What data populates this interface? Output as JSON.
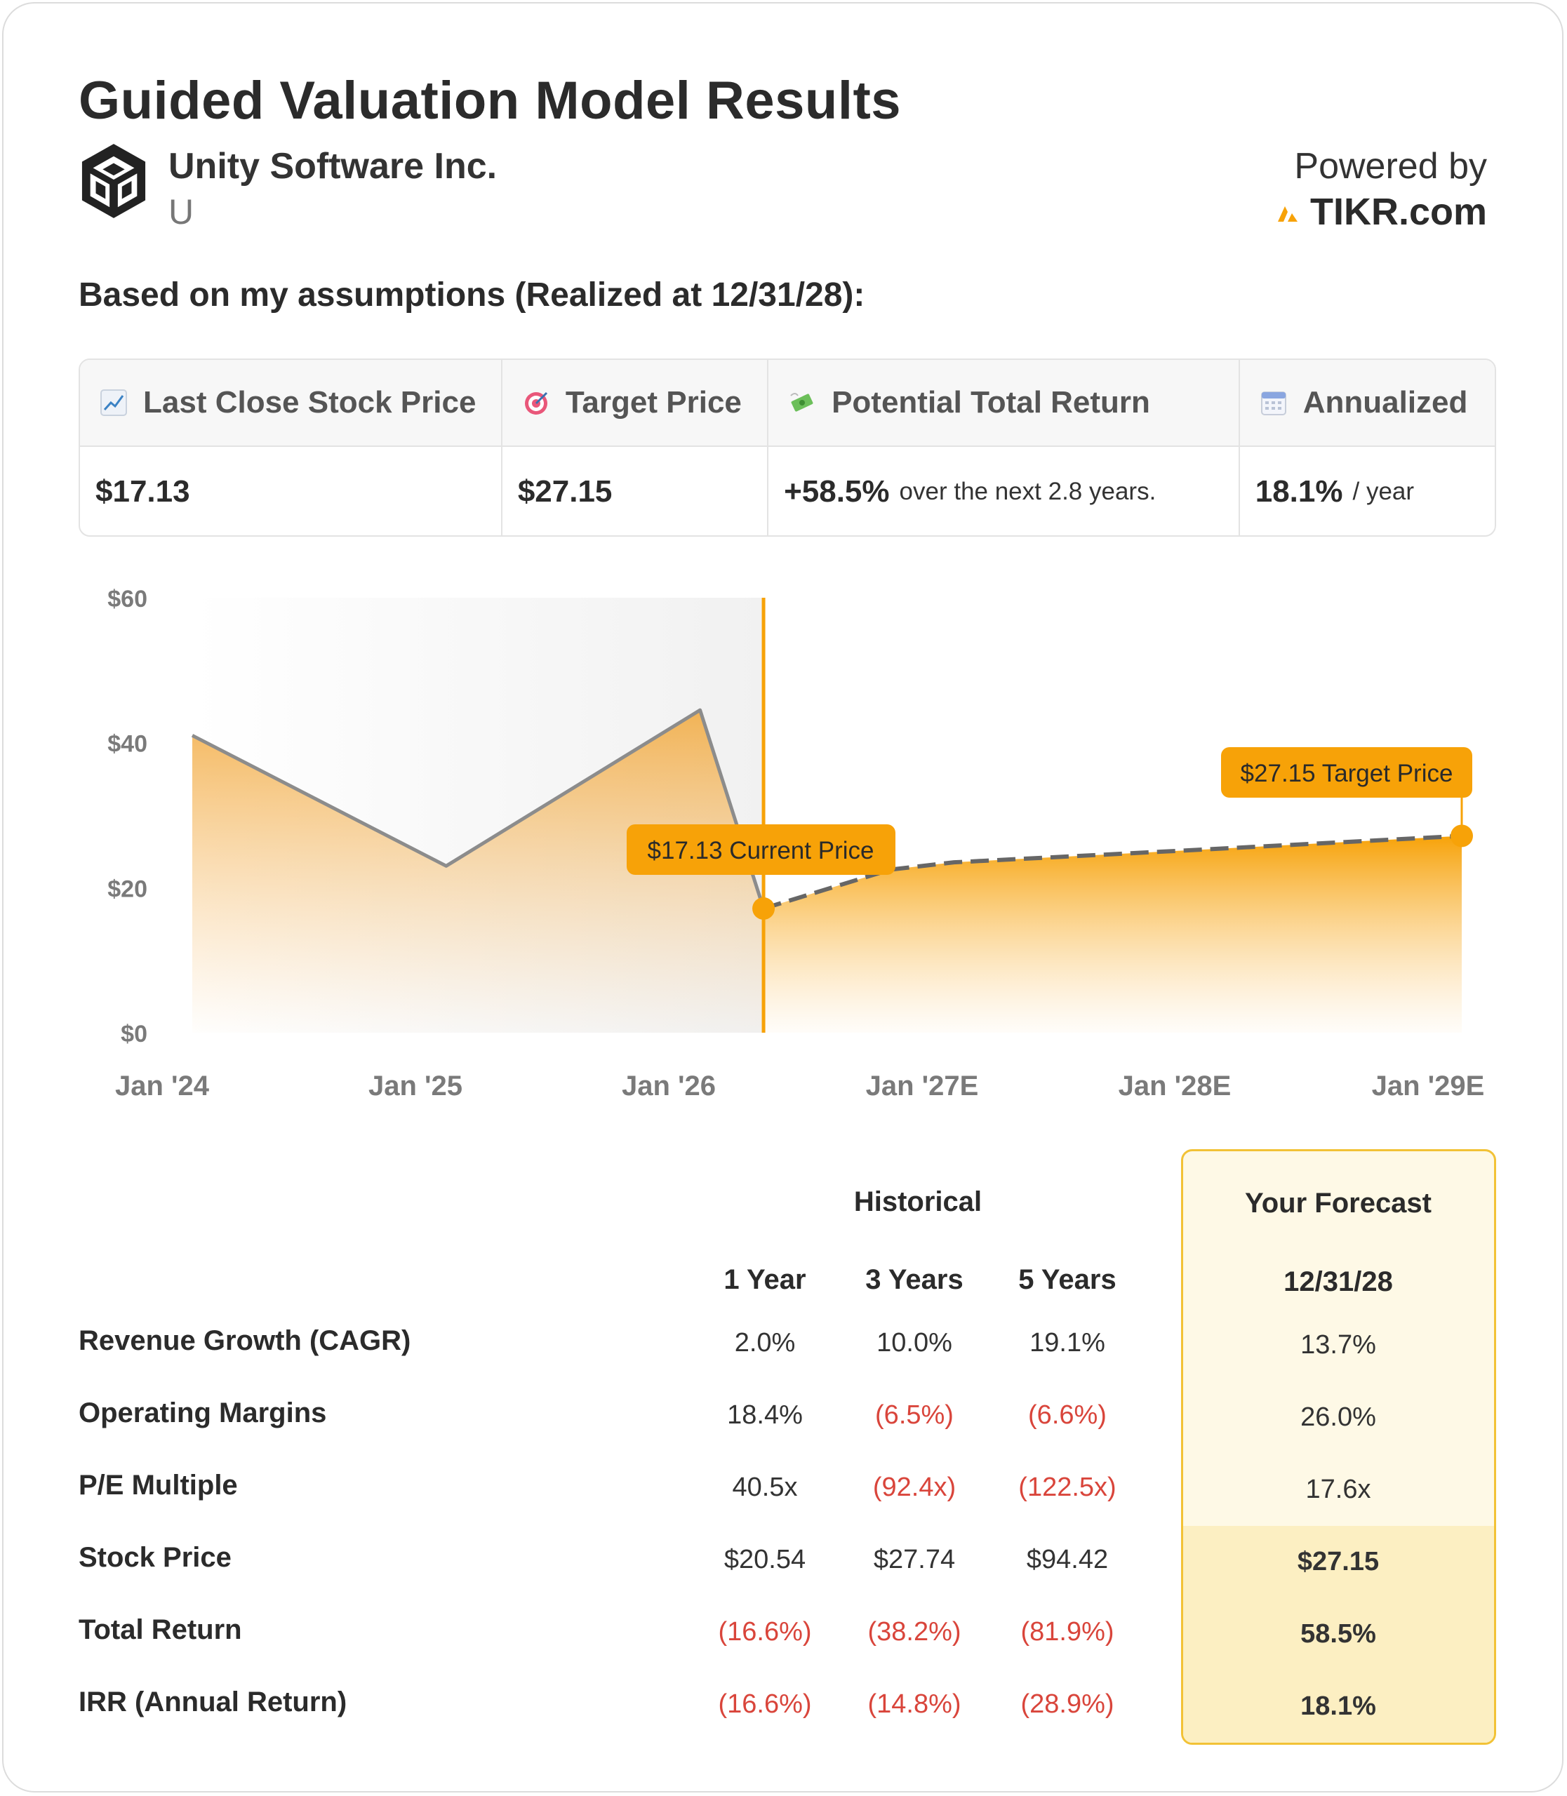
{
  "header": {
    "title": "Guided Valuation Model Results",
    "company": "Unity Software Inc.",
    "ticker": "U",
    "powered_by": "Powered by",
    "brand": "TIKR.com"
  },
  "subheading": "Based on my assumptions (Realized at 12/31/28):",
  "metrics": [
    {
      "icon": "chart-increasing-icon",
      "label": "Last Close Stock Price",
      "value": "$17.13",
      "suffix": ""
    },
    {
      "icon": "target-icon",
      "label": "Target Price",
      "value": "$27.15",
      "suffix": ""
    },
    {
      "icon": "money-flying-icon",
      "label": "Potential Total Return",
      "value": "+58.5%",
      "suffix": "over the next 2.8 years."
    },
    {
      "icon": "calendar-icon",
      "label": "Annualized",
      "value": "18.1%",
      "suffix": "/ year"
    }
  ],
  "chart_data": {
    "type": "area",
    "x_tick_labels": [
      "Jan '24",
      "Jan '25",
      "Jan '26",
      "Jan '27E",
      "Jan '28E",
      "Jan '29E"
    ],
    "y_tick_labels": [
      "$60",
      "$40",
      "$20",
      "$0"
    ],
    "ylim": [
      0,
      60
    ],
    "xlim": [
      2024.0,
      2029.0
    ],
    "historical": {
      "x": [
        2024.0,
        2025.0,
        2026.0,
        2026.25
      ],
      "y": [
        41,
        23,
        44.5,
        17.13
      ]
    },
    "forecast": {
      "x": [
        2026.25,
        2026.75,
        2027.0,
        2028.0,
        2029.0
      ],
      "y": [
        17.13,
        22.5,
        23.5,
        25.3,
        27.15
      ]
    },
    "current_marker_x": 2026.25,
    "annotations": {
      "current": {
        "text": "$17.13 Current Price",
        "value": 17.13,
        "x": 2026.25
      },
      "target": {
        "text": "$27.15 Target Price",
        "value": 27.15,
        "x": 2029.0
      }
    },
    "colors": {
      "accent": "#f7a208",
      "line": "#8c8c8c",
      "dashed": "#666666",
      "shade": "#f4f4f4"
    }
  },
  "table": {
    "group_historical": "Historical",
    "group_forecast": "Your Forecast",
    "columns": [
      "1 Year",
      "3 Years",
      "5 Years"
    ],
    "forecast_column": "12/31/28",
    "rows": [
      {
        "label": "Revenue Growth (CAGR)",
        "values": [
          "2.0%",
          "10.0%",
          "19.1%"
        ],
        "negative": [
          false,
          false,
          false
        ],
        "forecast": "13.7%",
        "bold": false
      },
      {
        "label": "Operating Margins",
        "values": [
          "18.4%",
          "(6.5%)",
          "(6.6%)"
        ],
        "negative": [
          false,
          true,
          true
        ],
        "forecast": "26.0%",
        "bold": false
      },
      {
        "label": "P/E Multiple",
        "values": [
          "40.5x",
          "(92.4x)",
          "(122.5x)"
        ],
        "negative": [
          false,
          true,
          true
        ],
        "forecast": "17.6x",
        "bold": false
      },
      {
        "label": "Stock Price",
        "values": [
          "$20.54",
          "$27.74",
          "$94.42"
        ],
        "negative": [
          false,
          false,
          false
        ],
        "forecast": "$27.15",
        "bold": true
      },
      {
        "label": "Total Return",
        "values": [
          "(16.6%)",
          "(38.2%)",
          "(81.9%)"
        ],
        "negative": [
          true,
          true,
          true
        ],
        "forecast": "58.5%",
        "bold": true
      },
      {
        "label": "IRR (Annual Return)",
        "values": [
          "(16.6%)",
          "(14.8%)",
          "(28.9%)"
        ],
        "negative": [
          true,
          true,
          true
        ],
        "forecast": "18.1%",
        "bold": true
      }
    ]
  }
}
